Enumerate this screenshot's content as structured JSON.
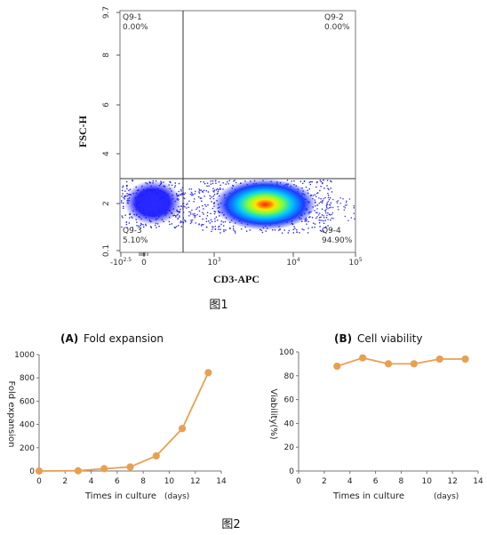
{
  "figure1": {
    "caption": "图1",
    "chart_data": {
      "type": "scatter",
      "xlabel": "CD3-APC",
      "ylabel": "FSC-H",
      "x_ticks": [
        {
          "value": "-10^2.5",
          "base": "-10",
          "exp": "2.5"
        },
        {
          "value": "0",
          "base": "0",
          "exp": ""
        },
        {
          "value": "10^3",
          "base": "10",
          "exp": "3"
        },
        {
          "value": "10^4",
          "base": "10",
          "exp": "4"
        },
        {
          "value": "10^5",
          "base": "10",
          "exp": "5"
        }
      ],
      "y_ticks": [
        "9.7",
        "8",
        "6",
        "4",
        "2",
        "0.1"
      ],
      "grid": false,
      "gates": [
        {
          "name": "Q9-1",
          "percent": "0.00%",
          "position": "top-left"
        },
        {
          "name": "Q9-2",
          "percent": "0.00%",
          "position": "top-right"
        },
        {
          "name": "Q9-3",
          "percent": "5.10%",
          "position": "bottom-left"
        },
        {
          "name": "Q9-4",
          "percent": "94.90%",
          "position": "bottom-right"
        }
      ],
      "populations": [
        {
          "label": "CD3-negative cluster",
          "x_center": "0",
          "y_center": 2.0,
          "share": 5.1
        },
        {
          "label": "CD3-positive cluster",
          "x_center": "10^3.7",
          "y_center": 1.9,
          "share": 94.9
        }
      ],
      "colors": {
        "low": "#1a1aff",
        "mid": "#00c8ff",
        "high_mid": "#7cff3c",
        "high": "#ffe600",
        "peak": "#ff2000"
      }
    }
  },
  "figure2": {
    "caption": "图2",
    "chart_data": [
      {
        "type": "line",
        "title_letter": "(A)",
        "title": "Fold expansion",
        "xlabel": "Times in culture",
        "xunit": "(days)",
        "ylabel": "Fold expansion",
        "xlim": [
          0,
          14
        ],
        "ylim": [
          0,
          1000
        ],
        "x_ticks": [
          0,
          2,
          4,
          6,
          8,
          10,
          12,
          14
        ],
        "y_ticks": [
          0,
          200,
          400,
          600,
          800,
          1000
        ],
        "x": [
          0,
          3,
          5,
          7,
          9,
          11,
          13
        ],
        "values": [
          0,
          2,
          20,
          35,
          130,
          365,
          845
        ],
        "color": "#e8a050"
      },
      {
        "type": "line",
        "title_letter": "(B)",
        "title": "Cell viability",
        "xlabel": "Times in culture",
        "xunit": "(days)",
        "ylabel": "Viability(%)",
        "xlim": [
          0,
          14
        ],
        "ylim": [
          0,
          100
        ],
        "x_ticks": [
          0,
          2,
          4,
          6,
          8,
          10,
          12,
          14
        ],
        "y_ticks": [
          0,
          20,
          40,
          60,
          80,
          100
        ],
        "x": [
          3,
          5,
          7,
          9,
          11,
          13
        ],
        "values": [
          88,
          95,
          90,
          90,
          94,
          94
        ],
        "color": "#e8a050"
      }
    ]
  }
}
